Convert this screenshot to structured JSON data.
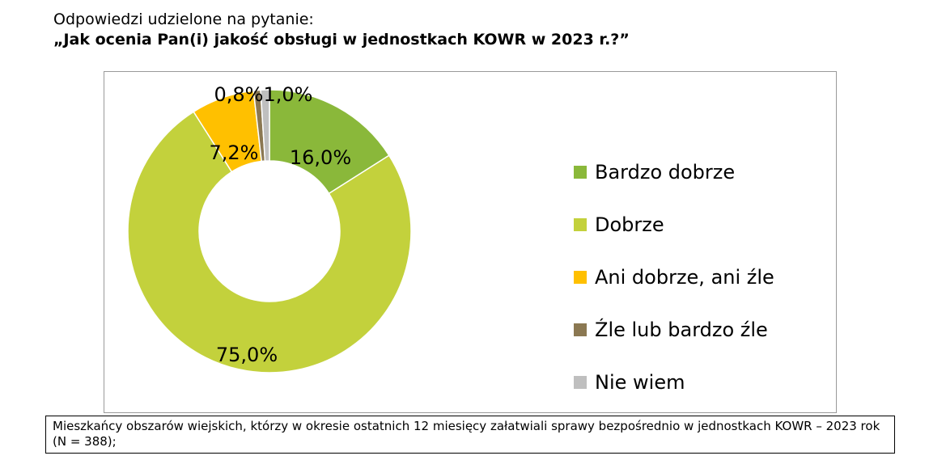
{
  "header": {
    "line1": "Odpowiedzi udzielone na pytanie:",
    "line2": "„Jak ocenia Pan(i) jakość obsługi w jednostkach KOWR w 2023 r.?”"
  },
  "footnote": "Mieszkańcy obszarów wiejskich, którzy w okresie ostatnich 12 miesięcy załatwiali sprawy bezpośrednio w jednostkach KOWR – 2023 rok (N = 388);",
  "chart_data": {
    "type": "pie",
    "style": "donut",
    "title": "„Jak ocenia Pan(i) jakość obsługi w jednostkach KOWR w 2023 r.?”",
    "legend_position": "right",
    "slices": [
      {
        "name": "Bardzo dobrze",
        "value": 16.0,
        "label": "16,0%",
        "color": "#8ab83a"
      },
      {
        "name": "Dobrze",
        "value": 75.0,
        "label": "75,0%",
        "color": "#c3d13c"
      },
      {
        "name": "Ani dobrze, ani źle",
        "value": 7.2,
        "label": "7,2%",
        "color": "#ffc000"
      },
      {
        "name": "Źle lub bardzo źle",
        "value": 0.8,
        "label": "0,8%",
        "color": "#8b7852"
      },
      {
        "name": "Nie wiem",
        "value": 1.0,
        "label": "1,0%",
        "color": "#bfbfbf"
      }
    ]
  }
}
